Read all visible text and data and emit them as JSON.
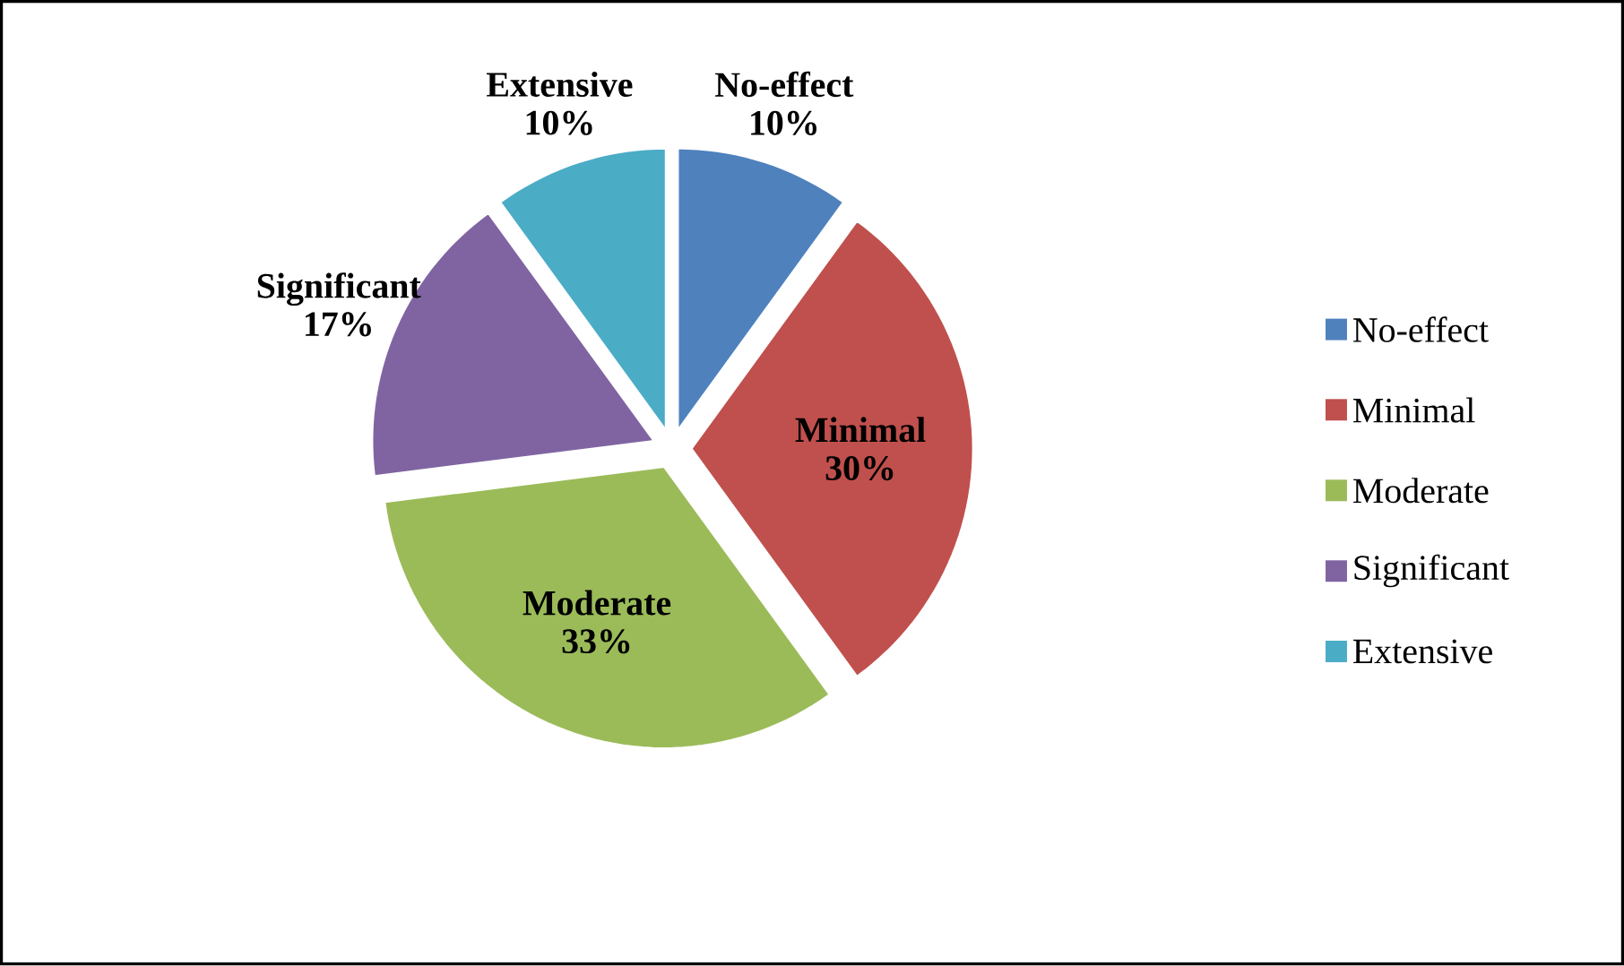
{
  "chart_data": {
    "type": "pie",
    "categories": [
      "No-effect",
      "Minimal",
      "Moderate",
      "Significant",
      "Extensive"
    ],
    "values": [
      10,
      30,
      33,
      17,
      10
    ],
    "value_labels": [
      "10%",
      "30%",
      "33%",
      "17%",
      "10%"
    ],
    "colors": [
      "#4f81bd",
      "#c0504d",
      "#9bbb59",
      "#8064a2",
      "#4bacc6"
    ],
    "legend": "right"
  }
}
